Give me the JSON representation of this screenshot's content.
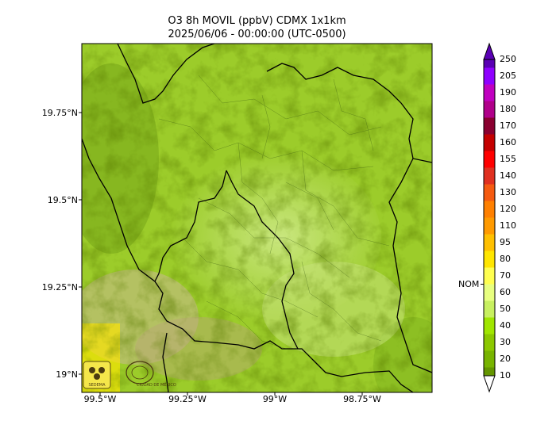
{
  "title_line1": "O3 8h MOVIL (ppbV) CDMX 1x1km",
  "title_line2": "2025/06/06 - 00:00:00 (UTC-0500)",
  "lat_labels": [
    "19.75°N",
    "19.5°N",
    "19.25°N",
    "19°N"
  ],
  "lon_labels": [
    "99.5°W",
    "99.25°W",
    "99°W",
    "98.75°W"
  ],
  "colorbar": {
    "labels": [
      "250",
      "205",
      "190",
      "180",
      "170",
      "160",
      "155",
      "140",
      "130",
      "120",
      "110",
      "95",
      "80",
      "70",
      "60",
      "50",
      "40",
      "30",
      "20",
      "10"
    ],
    "colors": [
      "#5a00b4",
      "#8f00ff",
      "#c000c0",
      "#b0008a",
      "#8a0030",
      "#c40000",
      "#ff0000",
      "#e03020",
      "#f55a10",
      "#ff8000",
      "#ff9a00",
      "#ffc000",
      "#ffe600",
      "#ffff50",
      "#e8ff80",
      "#c8f060",
      "#a0e600",
      "#8cc800",
      "#78b400",
      "#649600"
    ],
    "nom_label": "NOM",
    "nom_value": 65
  },
  "logos": {
    "logo1_text": "SEDEMA",
    "logo2_text": "CIUDAD DE MÉXICO"
  },
  "colors": {
    "background_green": "#9ccc2a",
    "boundary": "#000000"
  }
}
